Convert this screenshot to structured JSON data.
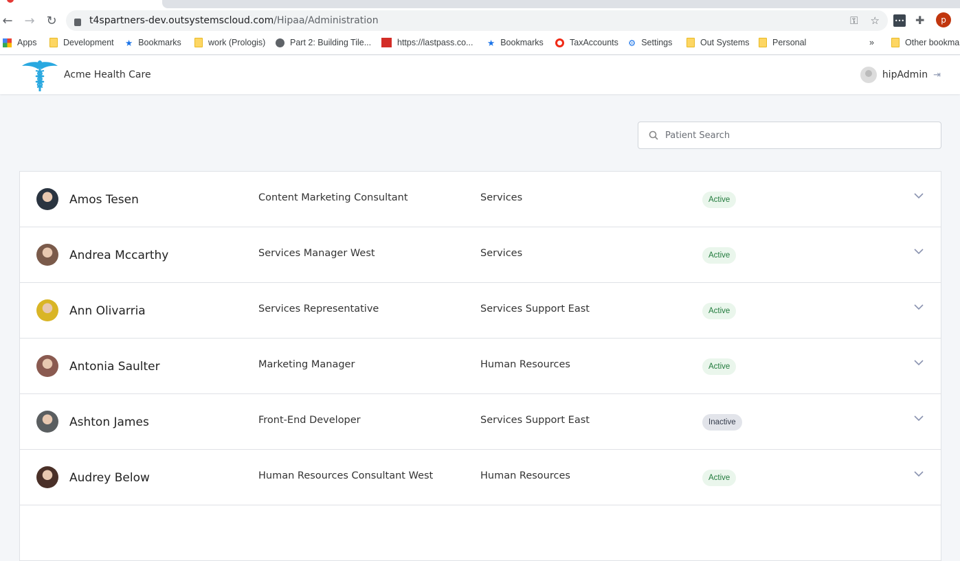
{
  "browser": {
    "url_host": "t4spartners-dev.outsystemscloud.com",
    "url_path": "/Hipaa/Administration",
    "profile_initial": "p",
    "bookmarks": [
      {
        "label": "Apps",
        "icon": "apps-grid-icon"
      },
      {
        "label": "Development",
        "icon": "folder-icon"
      },
      {
        "label": "Bookmarks",
        "icon": "star-icon"
      },
      {
        "label": "work (Prologis)",
        "icon": "folder-icon"
      },
      {
        "label": "Part 2: Building Tile...",
        "icon": "globe-icon"
      },
      {
        "label": "https://lastpass.co...",
        "icon": "lastpass-icon"
      },
      {
        "label": "Bookmarks",
        "icon": "star-icon"
      },
      {
        "label": "TaxAccounts",
        "icon": "opera-icon"
      },
      {
        "label": "Settings",
        "icon": "gear-icon"
      },
      {
        "label": "Out Systems",
        "icon": "folder-icon"
      },
      {
        "label": "Personal",
        "icon": "folder-icon"
      }
    ],
    "overflow": "»",
    "other_bookmarks": "Other bookmarks"
  },
  "header": {
    "app_title": "Acme Health Care",
    "username": "hipAdmin"
  },
  "search": {
    "placeholder": "Patient Search",
    "value": ""
  },
  "colors": {
    "active_bg": "#eaf6ec",
    "active_text": "#217a3c",
    "inactive_bg": "#e2e4ea",
    "logo": "#29a8e0"
  },
  "people": [
    {
      "name": "Amos Tesen",
      "title": "Content Marketing Consultant",
      "department": "Services",
      "status": "Active",
      "avatar_color": "#2a3440"
    },
    {
      "name": "Andrea Mccarthy",
      "title": "Services Manager West",
      "department": "Services",
      "status": "Active",
      "avatar_color": "#7a5a4a"
    },
    {
      "name": "Ann Olivarria",
      "title": "Services Representative",
      "department": "Services Support East",
      "status": "Active",
      "avatar_color": "#d9b526"
    },
    {
      "name": "Antonia Saulter",
      "title": "Marketing Manager",
      "department": "Human Resources",
      "status": "Active",
      "avatar_color": "#8a5a50"
    },
    {
      "name": "Ashton James",
      "title": "Front-End Developer",
      "department": "Services Support East",
      "status": "Inactive",
      "avatar_color": "#5a5e60"
    },
    {
      "name": "Audrey Below",
      "title": "Human Resources Consultant West",
      "department": "Human Resources",
      "status": "Active",
      "avatar_color": "#4a3028"
    }
  ]
}
